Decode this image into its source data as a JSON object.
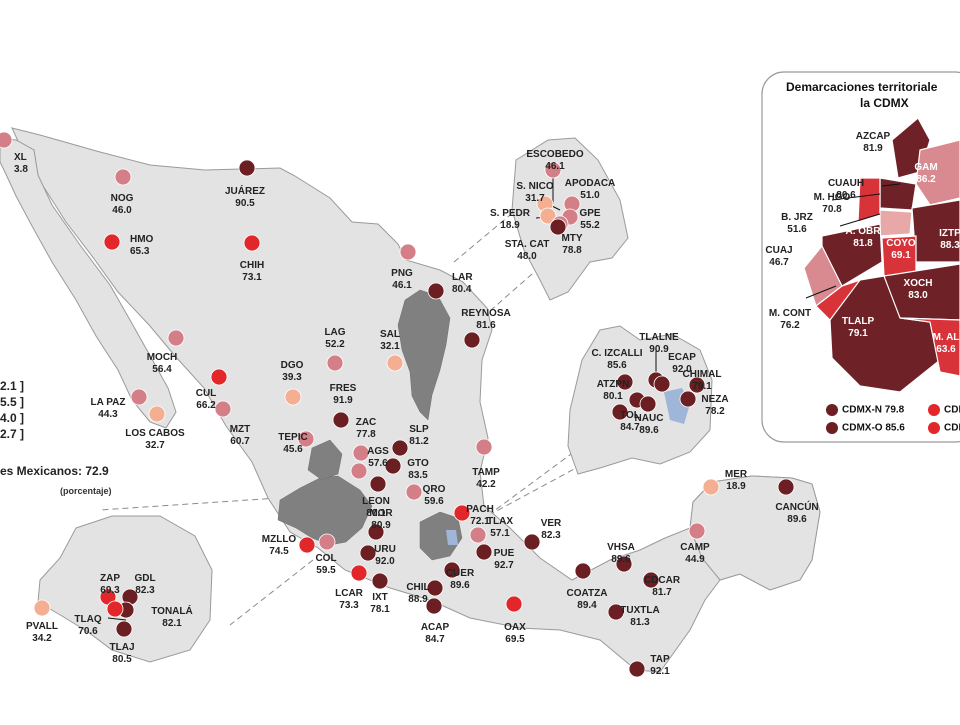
{
  "colors": {
    "very_high": "#6b1f23",
    "high": "#e2272b",
    "medium": "#d47f88",
    "low": "#f4ae92",
    "cdmx_dark": "#6e2227",
    "cdmx_red": "#d9333a",
    "cdmx_pink": "#d98a90",
    "cdmx_light": "#e9a8a8"
  },
  "national": {
    "text": "es Mexicanos:  72.9",
    "unit": "(porcentaje)"
  },
  "legend_values": [
    "2.1 ]",
    "5.5 ]",
    "4.0 ]",
    "2.7 ]"
  ],
  "cities": [
    {
      "label": "XL",
      "value": "3.8",
      "level": "medium"
    },
    {
      "label": "NOG",
      "value": "46.0",
      "level": "medium"
    },
    {
      "label": "JUÁREZ",
      "value": "90.5",
      "level": "very_high"
    },
    {
      "label": "HMO",
      "value": "65.3",
      "level": "high"
    },
    {
      "label": "CHIH",
      "value": "73.1",
      "level": "high"
    },
    {
      "label": "PNG",
      "value": "46.1",
      "level": "medium"
    },
    {
      "label": "LAR",
      "value": "80.4",
      "level": "very_high"
    },
    {
      "label": "REYNOSA",
      "value": "81.6",
      "level": "very_high"
    },
    {
      "label": "LAG",
      "value": "52.2",
      "level": "medium"
    },
    {
      "label": "SAL",
      "value": "32.1",
      "level": "low"
    },
    {
      "label": "MOCH",
      "value": "56.4",
      "level": "medium"
    },
    {
      "label": "DGO",
      "value": "39.3",
      "level": "low"
    },
    {
      "label": "LA PAZ",
      "value": "44.3",
      "level": "medium"
    },
    {
      "label": "LOS CABOS",
      "value": "32.7",
      "level": "low"
    },
    {
      "label": "CUL",
      "value": "66.2",
      "level": "high"
    },
    {
      "label": "FRES",
      "value": "91.9",
      "level": "very_high"
    },
    {
      "label": "ZAC",
      "value": "77.8",
      "level": "medium"
    },
    {
      "label": "MZT",
      "value": "60.7",
      "level": "medium"
    },
    {
      "label": "SLP",
      "value": "81.2",
      "level": "very_high"
    },
    {
      "label": "TEPIC",
      "value": "45.6",
      "level": "medium"
    },
    {
      "label": "AGS",
      "value": "57.6",
      "level": "medium"
    },
    {
      "label": "TAMP",
      "value": "42.2",
      "level": "medium"
    },
    {
      "label": "GTO",
      "value": "83.5",
      "level": "very_high"
    },
    {
      "label": "LEON",
      "value": "80.1",
      "level": "very_high"
    },
    {
      "label": "QRO",
      "value": "59.6",
      "level": "medium"
    },
    {
      "label": "PACH",
      "value": "72.1",
      "level": "high"
    },
    {
      "label": "MOR",
      "value": "80.9",
      "level": "very_high"
    },
    {
      "label": "TLAX",
      "value": "57.1",
      "level": "medium"
    },
    {
      "label": "VER",
      "value": "82.3",
      "level": "very_high"
    },
    {
      "label": "URU",
      "value": "92.0",
      "level": "very_high"
    },
    {
      "label": "PUE",
      "value": "92.7",
      "level": "very_high"
    },
    {
      "label": "CUER",
      "value": "89.6",
      "level": "very_high"
    },
    {
      "label": "MZLLO",
      "value": "74.5",
      "level": "high"
    },
    {
      "label": "COL",
      "value": "59.5",
      "level": "medium"
    },
    {
      "label": "LCAR",
      "value": "73.3",
      "level": "high"
    },
    {
      "label": "IXT",
      "value": "78.1",
      "level": "very_high"
    },
    {
      "label": "CHIL",
      "value": "88.9",
      "level": "very_high"
    },
    {
      "label": "ACAP",
      "value": "84.7",
      "level": "very_high"
    },
    {
      "label": "OAX",
      "value": "69.5",
      "level": "high"
    },
    {
      "label": "COATZA",
      "value": "89.4",
      "level": "very_high"
    },
    {
      "label": "VHSA",
      "value": "89.6",
      "level": "very_high"
    },
    {
      "label": "CAMP",
      "value": "44.9",
      "level": "medium"
    },
    {
      "label": "MER",
      "value": "18.9",
      "level": "low"
    },
    {
      "label": "CANCÚN",
      "value": "89.6",
      "level": "very_high"
    },
    {
      "label": "CDCAR",
      "value": "81.7",
      "level": "very_high"
    },
    {
      "label": "TUXTLA",
      "value": "81.3",
      "level": "very_high"
    },
    {
      "label": "TAP",
      "value": "92.1",
      "level": "very_high"
    }
  ],
  "monterrey": [
    {
      "label": "ESCOBEDO",
      "value": "46.1",
      "level": "medium"
    },
    {
      "label": "S. NICO",
      "value": "31.7",
      "level": "low"
    },
    {
      "label": "APODACA",
      "value": "51.0",
      "level": "medium"
    },
    {
      "label": "S. PEDR",
      "value": "18.9",
      "level": "low"
    },
    {
      "label": "GPE",
      "value": "55.2",
      "level": "medium"
    },
    {
      "label": "STA. CAT",
      "value": "48.0",
      "level": "medium"
    },
    {
      "label": "MTY",
      "value": "78.8",
      "level": "very_high"
    }
  ],
  "edomex": [
    {
      "label": "TLALNE",
      "value": "90.9",
      "level": "very_high"
    },
    {
      "label": "C. IZCALLI",
      "value": "85.6",
      "level": "very_high"
    },
    {
      "label": "ECAP",
      "value": "92.0",
      "level": "very_high"
    },
    {
      "label": "CHIMAL",
      "value": "79.1",
      "level": "very_high"
    },
    {
      "label": "ATZPN",
      "value": "80.1",
      "level": "very_high"
    },
    {
      "label": "NEZA",
      "value": "78.2",
      "level": "very_high"
    },
    {
      "label": "TOL",
      "value": "84.7",
      "level": "very_high"
    },
    {
      "label": "NAUC",
      "value": "89.6",
      "level": "very_high"
    }
  ],
  "guadalajara": [
    {
      "label": "ZAP",
      "value": "69.3",
      "level": "high"
    },
    {
      "label": "GDL",
      "value": "82.3",
      "level": "very_high"
    },
    {
      "label": "TONALÁ",
      "value": "82.1",
      "level": "very_high"
    },
    {
      "label": "PVALL",
      "value": "34.2",
      "level": "low"
    },
    {
      "label": "TLAQ",
      "value": "70.6",
      "level": "high"
    },
    {
      "label": "TLAJ",
      "value": "80.5",
      "level": "very_high"
    }
  ],
  "cdmx": {
    "title_line1": "Demarcaciones territoriale",
    "title_line2": "la CDMX",
    "boroughs": [
      {
        "label": "AZCAP",
        "value": "81.9"
      },
      {
        "label": "CUAUH",
        "value": "80.6"
      },
      {
        "label": "GAM",
        "value": "86.2"
      },
      {
        "label": "M. HGO",
        "value": "70.8"
      },
      {
        "label": "B. JRZ",
        "value": "51.6"
      },
      {
        "label": "A. OBR",
        "value": "81.8"
      },
      {
        "label": "IZTP",
        "value": "88.3"
      },
      {
        "label": "COYO",
        "value": "69.1"
      },
      {
        "label": "CUAJ",
        "value": "46.7"
      },
      {
        "label": "XOCH",
        "value": "83.0"
      },
      {
        "label": "M. CONT",
        "value": "76.2"
      },
      {
        "label": "TLALP",
        "value": "79.1"
      },
      {
        "label": "M. AL",
        "value": "63.6"
      }
    ],
    "legend": [
      {
        "label": "CDMX-N 79.8",
        "color": "#6b1f23"
      },
      {
        "label": "CDMX",
        "color": "#e2272b"
      },
      {
        "label": "CDMX-O 85.6",
        "color": "#6b1f23"
      },
      {
        "label": "CDMX",
        "color": "#e2272b"
      }
    ]
  }
}
